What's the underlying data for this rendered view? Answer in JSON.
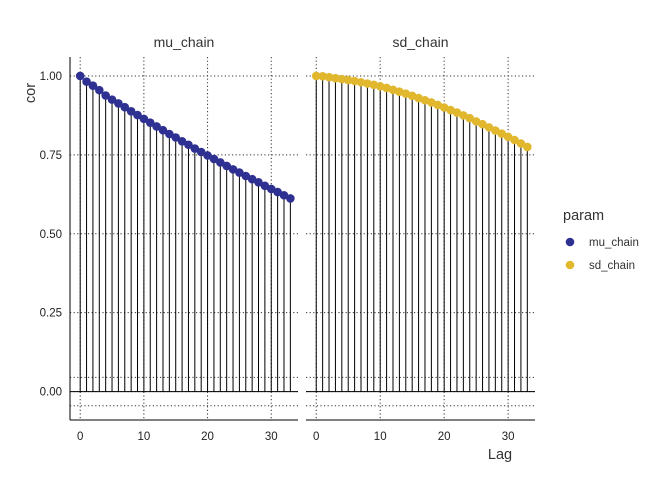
{
  "chart_data": {
    "type": "scatter",
    "style": "autocorrelation lollipop (vertical segments from 0 to cor, point at top)",
    "ylabel": "cor",
    "xlabel": "Lag",
    "ylim": [
      -0.09,
      1.06
    ],
    "xlim": [
      -1.6,
      34.2
    ],
    "y_ticks": [
      "0.00",
      "0.25",
      "0.50",
      "0.75",
      "1.00"
    ],
    "y_tick_values": [
      0,
      0.25,
      0.5,
      0.75,
      1.0
    ],
    "x_ticks": [
      "0",
      "10",
      "20",
      "30"
    ],
    "x_tick_values": [
      0,
      10,
      20,
      30
    ],
    "grid": "dotted",
    "confidence_band": [
      -0.045,
      0.045
    ],
    "legend": {
      "title": "param",
      "placement": "right",
      "entries": [
        {
          "label": "mu_chain",
          "color": "#2e3192"
        },
        {
          "label": "sd_chain",
          "color": "#e1b72e"
        }
      ]
    },
    "panels": [
      {
        "strip": "mu_chain",
        "color": "#2e3192",
        "lags": [
          0,
          1,
          2,
          3,
          4,
          5,
          6,
          7,
          8,
          9,
          10,
          11,
          12,
          13,
          14,
          15,
          16,
          17,
          18,
          19,
          20,
          21,
          22,
          23,
          24,
          25,
          26,
          27,
          28,
          29,
          30,
          31,
          32,
          33
        ],
        "values": [
          1.0,
          0.982,
          0.969,
          0.955,
          0.938,
          0.925,
          0.913,
          0.901,
          0.888,
          0.876,
          0.864,
          0.852,
          0.84,
          0.828,
          0.816,
          0.805,
          0.793,
          0.782,
          0.77,
          0.759,
          0.748,
          0.737,
          0.726,
          0.715,
          0.704,
          0.694,
          0.683,
          0.673,
          0.663,
          0.652,
          0.642,
          0.632,
          0.622,
          0.612
        ]
      },
      {
        "strip": "sd_chain",
        "color": "#e1b72e",
        "lags": [
          0,
          1,
          2,
          3,
          4,
          5,
          6,
          7,
          8,
          9,
          10,
          11,
          12,
          13,
          14,
          15,
          16,
          17,
          18,
          19,
          20,
          21,
          22,
          23,
          24,
          25,
          26,
          27,
          28,
          29,
          30,
          31,
          32,
          33
        ],
        "values": [
          1.0,
          0.999,
          0.996,
          0.993,
          0.99,
          0.987,
          0.984,
          0.98,
          0.976,
          0.972,
          0.967,
          0.962,
          0.956,
          0.95,
          0.944,
          0.937,
          0.93,
          0.923,
          0.916,
          0.908,
          0.9,
          0.892,
          0.884,
          0.875,
          0.866,
          0.856,
          0.847,
          0.837,
          0.827,
          0.817,
          0.807,
          0.797,
          0.786,
          0.775
        ]
      }
    ]
  }
}
